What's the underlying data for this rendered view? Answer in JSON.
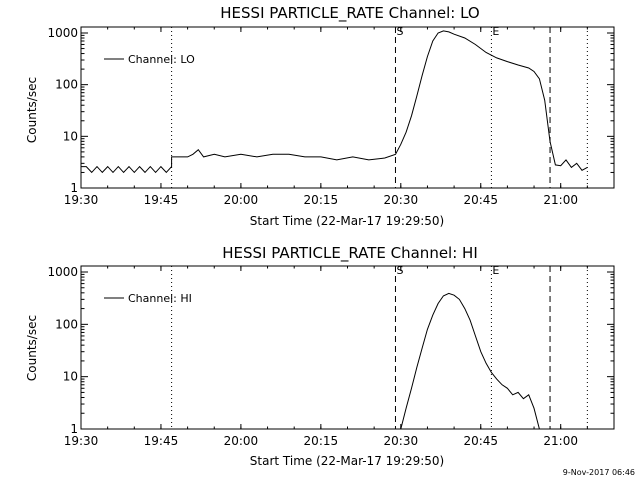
{
  "footer": {
    "timestamp": "9-Nov-2017 06:46"
  },
  "chart_data": [
    {
      "type": "line",
      "title": "HESSI PARTICLE_RATE Channel: LO",
      "xlabel": "Start Time (22-Mar-17 19:29:50)",
      "ylabel": "Counts/sec",
      "yscale": "log",
      "xlim": [
        "19:30",
        "21:10"
      ],
      "ylim": [
        1,
        1000
      ],
      "x_ticks": [
        "19:30",
        "19:45",
        "20:00",
        "20:15",
        "20:30",
        "20:45",
        "21:00"
      ],
      "y_ticks": [
        "1",
        "10",
        "100",
        "1000"
      ],
      "legend": {
        "position": "top-left",
        "entries": [
          "Channel: LO"
        ]
      },
      "markers": [
        {
          "time": "19:47",
          "style": "dotted",
          "label": ""
        },
        {
          "time": "20:29",
          "style": "dashed",
          "label": "S"
        },
        {
          "time": "20:47",
          "style": "dotted",
          "label": "E"
        },
        {
          "time": "20:58",
          "style": "dashed",
          "label": ""
        },
        {
          "time": "21:05",
          "style": "dotted",
          "label": ""
        }
      ],
      "series": [
        {
          "name": "Channel: LO",
          "points": [
            [
              "19:30",
              2.6
            ],
            [
              "19:31",
              2.6
            ],
            [
              "19:32",
              2.0
            ],
            [
              "19:33",
              2.6
            ],
            [
              "19:34",
              2.0
            ],
            [
              "19:35",
              2.6
            ],
            [
              "19:36",
              2.0
            ],
            [
              "19:37",
              2.6
            ],
            [
              "19:38",
              2.0
            ],
            [
              "19:39",
              2.6
            ],
            [
              "19:40",
              2.0
            ],
            [
              "19:41",
              2.6
            ],
            [
              "19:42",
              2.0
            ],
            [
              "19:43",
              2.6
            ],
            [
              "19:44",
              2.0
            ],
            [
              "19:45",
              2.6
            ],
            [
              "19:46",
              2.0
            ],
            [
              "19:47",
              2.6
            ],
            [
              "19:47",
              4.0
            ],
            [
              "19:50",
              4.0
            ],
            [
              "19:51",
              4.5
            ],
            [
              "19:52",
              5.5
            ],
            [
              "19:53",
              4.0
            ],
            [
              "19:55",
              4.5
            ],
            [
              "19:57",
              4.0
            ],
            [
              "20:00",
              4.5
            ],
            [
              "20:03",
              4.0
            ],
            [
              "20:06",
              4.5
            ],
            [
              "20:09",
              4.5
            ],
            [
              "20:12",
              4.0
            ],
            [
              "20:15",
              4.0
            ],
            [
              "20:18",
              3.5
            ],
            [
              "20:21",
              4.0
            ],
            [
              "20:24",
              3.5
            ],
            [
              "20:27",
              3.8
            ],
            [
              "20:29",
              4.5
            ],
            [
              "20:30",
              7.0
            ],
            [
              "20:31",
              12
            ],
            [
              "20:32",
              25
            ],
            [
              "20:33",
              60
            ],
            [
              "20:34",
              150
            ],
            [
              "20:35",
              350
            ],
            [
              "20:36",
              700
            ],
            [
              "20:37",
              1000
            ],
            [
              "20:38",
              1100
            ],
            [
              "20:39",
              1050
            ],
            [
              "20:40",
              950
            ],
            [
              "20:42",
              800
            ],
            [
              "20:44",
              600
            ],
            [
              "20:46",
              420
            ],
            [
              "20:48",
              330
            ],
            [
              "20:50",
              280
            ],
            [
              "20:52",
              240
            ],
            [
              "20:54",
              210
            ],
            [
              "20:55",
              180
            ],
            [
              "20:56",
              130
            ],
            [
              "20:57",
              50
            ],
            [
              "20:58",
              8
            ],
            [
              "20:59",
              2.8
            ],
            [
              "21:00",
              2.7
            ],
            [
              "21:01",
              3.5
            ],
            [
              "21:02",
              2.5
            ],
            [
              "21:03",
              3.0
            ],
            [
              "21:04",
              2.2
            ],
            [
              "21:05",
              2.5
            ]
          ]
        }
      ]
    },
    {
      "type": "line",
      "title": "HESSI PARTICLE_RATE Channel: HI",
      "xlabel": "Start Time (22-Mar-17 19:29:50)",
      "ylabel": "Counts/sec",
      "yscale": "log",
      "xlim": [
        "19:30",
        "21:10"
      ],
      "ylim": [
        1,
        1000
      ],
      "x_ticks": [
        "19:30",
        "19:45",
        "20:00",
        "20:15",
        "20:30",
        "20:45",
        "21:00"
      ],
      "y_ticks": [
        "1",
        "10",
        "100",
        "1000"
      ],
      "legend": {
        "position": "top-left",
        "entries": [
          "Channel: HI"
        ]
      },
      "markers": [
        {
          "time": "19:47",
          "style": "dotted",
          "label": ""
        },
        {
          "time": "20:29",
          "style": "dashed",
          "label": "S"
        },
        {
          "time": "20:47",
          "style": "dotted",
          "label": "E"
        },
        {
          "time": "20:58",
          "style": "dashed",
          "label": ""
        },
        {
          "time": "21:05",
          "style": "dotted",
          "label": ""
        }
      ],
      "series": [
        {
          "name": "Channel: HI",
          "points": [
            [
              "20:30",
              1.0
            ],
            [
              "20:31",
              2.5
            ],
            [
              "20:32",
              6
            ],
            [
              "20:33",
              15
            ],
            [
              "20:34",
              35
            ],
            [
              "20:35",
              80
            ],
            [
              "20:36",
              150
            ],
            [
              "20:37",
              250
            ],
            [
              "20:38",
              350
            ],
            [
              "20:39",
              390
            ],
            [
              "20:40",
              360
            ],
            [
              "20:41",
              300
            ],
            [
              "20:42",
              200
            ],
            [
              "20:43",
              120
            ],
            [
              "20:44",
              60
            ],
            [
              "20:45",
              30
            ],
            [
              "20:46",
              18
            ],
            [
              "20:47",
              12
            ],
            [
              "20:48",
              9
            ],
            [
              "20:49",
              7
            ],
            [
              "20:50",
              6
            ],
            [
              "20:51",
              4.5
            ],
            [
              "20:52",
              5
            ],
            [
              "20:53",
              3.8
            ],
            [
              "20:54",
              4.5
            ],
            [
              "20:55",
              2.5
            ],
            [
              "20:56",
              1.0
            ]
          ]
        }
      ]
    }
  ]
}
